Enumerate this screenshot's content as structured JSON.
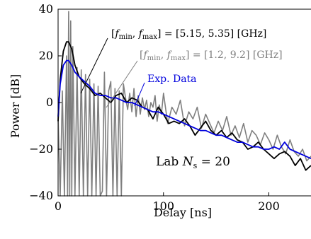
{
  "chart_data": {
    "type": "line",
    "title": "",
    "xlabel": "Delay [ns]",
    "ylabel": "Power [dB]",
    "xlim": [
      0,
      240
    ],
    "ylim": [
      -40,
      40
    ],
    "xticks": [
      0,
      100,
      200
    ],
    "yticks": [
      -40,
      -20,
      0,
      20,
      40
    ],
    "xtick_labels": [
      "0",
      "100",
      "200"
    ],
    "ytick_labels": [
      "−40",
      "−20",
      "0",
      "20",
      "40"
    ],
    "grid": false,
    "annotations": {
      "narrow": "[fmin, fmax] = [5.15, 5.35] [GHz]",
      "wide": "[fmin, fmax] = [1.2, 9.2] [GHz]",
      "exp": "Exp. Data",
      "lab": "Lab Ns = 20"
    },
    "series": [
      {
        "color": "#7f7f7f",
        "x": [
          0,
          2,
          4,
          6,
          8,
          9,
          10,
          11,
          12,
          13,
          14,
          16,
          18,
          20,
          22,
          24,
          26,
          28,
          30,
          32,
          34,
          36,
          38,
          40,
          42,
          44,
          46,
          48,
          50,
          52,
          54,
          56,
          58,
          60,
          62,
          64,
          66,
          68,
          70,
          72,
          74,
          76,
          78,
          80,
          82,
          84,
          86,
          88,
          90,
          92,
          94,
          96,
          98,
          100,
          104,
          108,
          112,
          116,
          120,
          124,
          128,
          132,
          136,
          140,
          144,
          148,
          152,
          156,
          160,
          164,
          168,
          172,
          176,
          180,
          184,
          188,
          192,
          196,
          200,
          204,
          208,
          212,
          216,
          220,
          224,
          228,
          232,
          236,
          240
        ],
        "y": [
          -6,
          -40,
          5,
          -40,
          20,
          -40,
          39,
          -40,
          35,
          -40,
          24,
          -40,
          15,
          -40,
          14,
          -40,
          12,
          -40,
          10,
          -40,
          8,
          -40,
          7,
          -40,
          -38,
          13,
          -40,
          5,
          9,
          -40,
          6,
          -40,
          5,
          -40,
          8,
          2,
          -3,
          4,
          -4,
          6,
          -6,
          3,
          -5,
          2,
          -3,
          1,
          -6,
          0,
          -2,
          3,
          -8,
          -1,
          -5,
          4,
          -9,
          -2,
          -5,
          1,
          -10,
          -4,
          -7,
          -2,
          -11,
          -5,
          -9,
          -13,
          -8,
          -12,
          -6,
          -14,
          -10,
          -15,
          -9,
          -17,
          -12,
          -14,
          -18,
          -13,
          -16,
          -20,
          -14,
          -19,
          -22,
          -16,
          -21,
          -23,
          -20,
          -25,
          -23
        ]
      },
      {
        "color": "#000000",
        "x": [
          0,
          2,
          5,
          8,
          10,
          13,
          16,
          20,
          25,
          30,
          35,
          40,
          45,
          50,
          55,
          60,
          65,
          70,
          75,
          80,
          85,
          90,
          95,
          100,
          105,
          110,
          115,
          120,
          125,
          130,
          135,
          140,
          145,
          150,
          155,
          160,
          165,
          170,
          175,
          180,
          185,
          190,
          195,
          200,
          205,
          210,
          215,
          220,
          225,
          230,
          235,
          240
        ],
        "y": [
          -8,
          10,
          22,
          26,
          26,
          23,
          16,
          11,
          8,
          6,
          3,
          4,
          2,
          0,
          3,
          4,
          0,
          2,
          1,
          -2,
          -3,
          -7,
          -2,
          -5,
          -9,
          -8,
          -9,
          -7,
          -10,
          -14,
          -11,
          -8,
          -12,
          -14,
          -12,
          -15,
          -13,
          -16,
          -17,
          -20,
          -19,
          -17,
          -20,
          -22,
          -24,
          -22,
          -21,
          -23,
          -27,
          -24,
          -29,
          -27
        ]
      },
      {
        "color": "#0000dd",
        "x": [
          0,
          2,
          5,
          8,
          10,
          13,
          16,
          20,
          25,
          30,
          35,
          40,
          45,
          50,
          55,
          60,
          65,
          70,
          75,
          80,
          85,
          90,
          95,
          100,
          105,
          110,
          115,
          120,
          125,
          130,
          135,
          140,
          145,
          150,
          155,
          160,
          165,
          170,
          175,
          180,
          185,
          190,
          195,
          200,
          205,
          210,
          215,
          220,
          225,
          230,
          235,
          240
        ],
        "y": [
          -6,
          8,
          16,
          18,
          18,
          16,
          13,
          11,
          9,
          7,
          4,
          3,
          3,
          2,
          2,
          1,
          0,
          0,
          -1,
          -2,
          -3,
          -4,
          -4,
          -5,
          -6,
          -7,
          -8,
          -9,
          -10,
          -11,
          -12,
          -12,
          -13,
          -14,
          -14,
          -15,
          -16,
          -17,
          -17,
          -18,
          -19,
          -19,
          -20,
          -20,
          -19,
          -20,
          -17,
          -20,
          -21,
          -22,
          -23,
          -24
        ]
      }
    ]
  }
}
